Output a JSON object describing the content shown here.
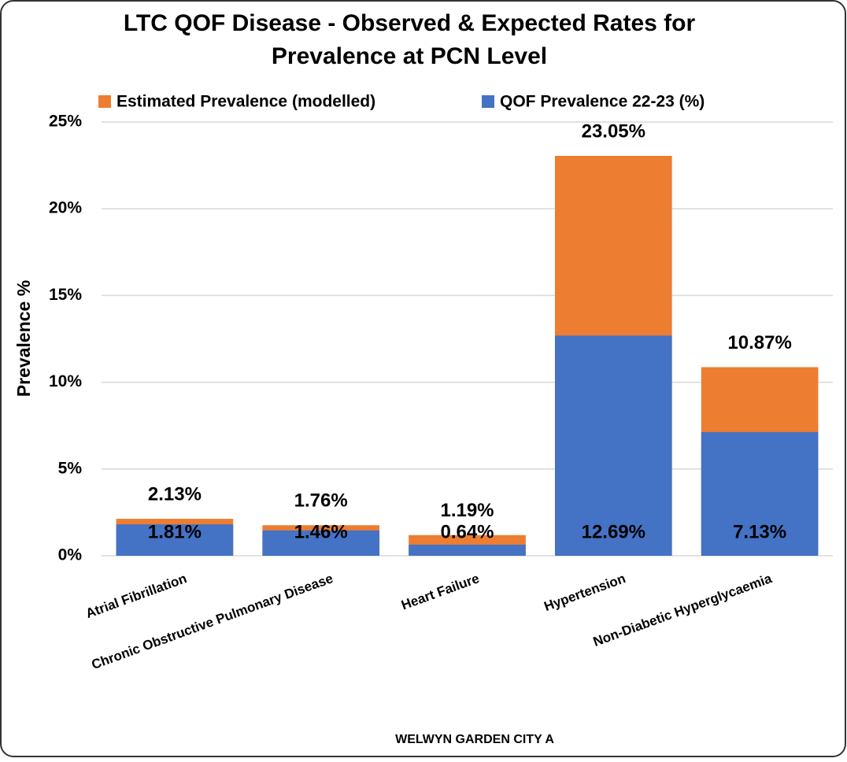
{
  "chart_data": {
    "type": "bar",
    "barmode": "overlay",
    "title": "LTC QOF Disease - Observed & Expected Rates for",
    "subtitle": "Prevalence at PCN Level",
    "x_label": "WELWYN GARDEN CITY A",
    "y_label": "Prevalence %",
    "categories": [
      "Atrial Fibrillation",
      "Chronic Obstructive Pulmonary Disease",
      "Heart Failure",
      "Hypertension",
      "Non-Diabetic Hyperglycaemia"
    ],
    "series": [
      {
        "name": "Estimated Prevalence (modelled)",
        "color": "#ed7d31",
        "values": [
          2.13,
          1.76,
          1.19,
          23.05,
          10.87
        ],
        "value_labels": [
          "2.13%",
          "1.76%",
          "1.19%",
          "23.05%",
          "10.87%"
        ]
      },
      {
        "name": "QOF Prevalence 22-23 (%)",
        "color": "#4472c4",
        "values": [
          1.81,
          1.46,
          0.64,
          12.69,
          7.13
        ],
        "value_labels": [
          "1.81%",
          "1.46%",
          "0.64%",
          "12.69%",
          "7.13%"
        ]
      }
    ],
    "ylim": [
      0,
      25
    ],
    "yticks": [
      {
        "value": 0,
        "label": "0%"
      },
      {
        "value": 5,
        "label": "5%"
      },
      {
        "value": 10,
        "label": "10%"
      },
      {
        "value": 15,
        "label": "15%"
      },
      {
        "value": 20,
        "label": "20%"
      },
      {
        "value": 25,
        "label": "25%"
      }
    ],
    "grid": true,
    "legend": "top"
  }
}
